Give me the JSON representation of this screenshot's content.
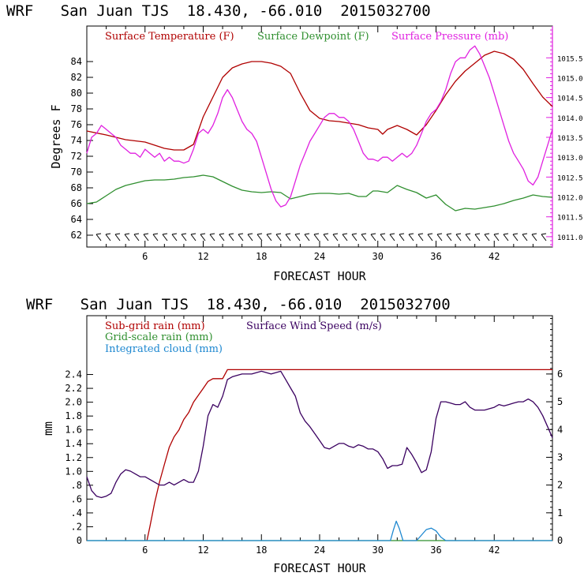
{
  "charts": [
    {
      "title": "WRF   San Juan TJS  18.430, -66.010  2015032700",
      "xlabel": "FORECAST HOUR",
      "ylabel_left": "Degrees F",
      "legend": [
        {
          "label": "Surface Temperature (F)",
          "color": "#b00000"
        },
        {
          "label": "Surface Dewpoint (F)",
          "color": "#2f8f2f"
        },
        {
          "label": "Surface Pressure (mb)",
          "color": "#e020e0"
        }
      ]
    },
    {
      "title": "WRF   San Juan TJS  18.430, -66.010  2015032700",
      "xlabel": "FORECAST HOUR",
      "ylabel_left": "mm",
      "legend": [
        {
          "label": "Sub-grid rain (mm)",
          "color": "#b00000"
        },
        {
          "label": "Surface Wind Speed (m/s)",
          "color": "#3a0060"
        },
        {
          "label": "Grid-scale rain (mm)",
          "color": "#2f8f2f"
        },
        {
          "label": "Integrated cloud (mm)",
          "color": "#1e88d0"
        }
      ]
    }
  ],
  "chart_data": [
    {
      "type": "line",
      "x_range": [
        0,
        48
      ],
      "x_ticks": [
        "6",
        "12",
        "18",
        "24",
        "30",
        "36",
        "42"
      ],
      "y_left_ticks": [
        "62",
        "64",
        "66",
        "68",
        "70",
        "72",
        "74",
        "76",
        "78",
        "80",
        "82",
        "84"
      ],
      "y_left_range": [
        60.5,
        88.5
      ],
      "y_right_ticks": [
        "1011.0",
        "1011.5",
        "1012.0",
        "1012.5",
        "1013.0",
        "1013.5",
        "1014.0",
        "1014.5",
        "1015.0",
        "1015.5"
      ],
      "y_right_range": [
        1010.74,
        1016.3
      ],
      "series": [
        {
          "name": "Surface Temperature (F)",
          "axis": "left",
          "color": "#b00000",
          "x": [
            0,
            2,
            4,
            6,
            8,
            9,
            10,
            11,
            12,
            13,
            14,
            15,
            16,
            17,
            18,
            19,
            20,
            21,
            22,
            23,
            24,
            25,
            26,
            27,
            28,
            29,
            30,
            30.5,
            31,
            32,
            33,
            34,
            35,
            36,
            37,
            38,
            39,
            40,
            41,
            42,
            43,
            44,
            45,
            46,
            47,
            48
          ],
          "y": [
            75.2,
            74.7,
            74.1,
            73.8,
            73.0,
            72.8,
            72.8,
            73.5,
            77,
            79.5,
            82,
            83.2,
            83.7,
            84.0,
            84.0,
            83.8,
            83.4,
            82.5,
            80,
            77.8,
            76.8,
            76.5,
            76.4,
            76.2,
            76.0,
            75.6,
            75.4,
            74.8,
            75.4,
            75.9,
            75.4,
            74.7,
            76,
            77.8,
            79.8,
            81.5,
            82.8,
            83.8,
            84.8,
            85.3,
            85,
            84.3,
            83,
            81.2,
            79.5,
            78.3
          ]
        },
        {
          "name": "Surface Dewpoint (F)",
          "axis": "left",
          "color": "#2f8f2f",
          "x": [
            0,
            1,
            2,
            3,
            4,
            5,
            6,
            7,
            8,
            9,
            10,
            11,
            12,
            13,
            14,
            15,
            16,
            17,
            18,
            19,
            20,
            21,
            22,
            23,
            24,
            25,
            26,
            27,
            28,
            28.8,
            29.5,
            30,
            31,
            32,
            33,
            34,
            35,
            36,
            37,
            38,
            39,
            40,
            41,
            42,
            43,
            44,
            45,
            46,
            47,
            48
          ],
          "y": [
            66,
            66.2,
            67,
            67.8,
            68.3,
            68.6,
            68.9,
            69.0,
            69.0,
            69.1,
            69.3,
            69.4,
            69.6,
            69.4,
            68.8,
            68.2,
            67.7,
            67.5,
            67.4,
            67.5,
            67.4,
            66.6,
            66.9,
            67.2,
            67.3,
            67.3,
            67.2,
            67.3,
            66.9,
            66.9,
            67.6,
            67.6,
            67.4,
            68.3,
            67.8,
            67.4,
            66.7,
            67.1,
            65.9,
            65.1,
            65.4,
            65.3,
            65.5,
            65.7,
            66.0,
            66.4,
            66.7,
            67.1,
            66.9,
            66.8
          ]
        },
        {
          "name": "Surface Pressure (mb)",
          "axis": "right",
          "color": "#e020e0",
          "x": [
            0,
            0.5,
            1,
            1.5,
            2,
            2.5,
            3,
            3.5,
            4,
            4.5,
            5,
            5.5,
            6,
            6.5,
            7,
            7.5,
            8,
            8.5,
            9,
            9.5,
            10,
            10.5,
            11,
            11.5,
            12,
            12.5,
            13,
            13.5,
            14,
            14.5,
            15,
            15.5,
            16,
            16.5,
            17,
            17.5,
            18,
            18.5,
            19,
            19.5,
            20,
            20.5,
            21,
            21.5,
            22,
            22.5,
            23,
            23.5,
            24,
            24.5,
            25,
            25.5,
            26,
            26.5,
            27,
            27.5,
            28,
            28.5,
            29,
            29.5,
            30,
            30.5,
            31,
            31.5,
            32,
            32.5,
            33,
            33.5,
            34,
            34.5,
            35,
            35.5,
            36,
            36.5,
            37,
            37.5,
            38,
            38.5,
            39,
            39.5,
            40,
            40.5,
            41,
            41.5,
            42,
            42.5,
            43,
            43.5,
            44,
            44.5,
            45,
            45.5,
            46,
            46.5,
            47,
            47.5,
            48
          ],
          "y": [
            1013.1,
            1013.5,
            1013.6,
            1013.8,
            1013.7,
            1013.6,
            1013.5,
            1013.3,
            1013.2,
            1013.1,
            1013.1,
            1013.0,
            1013.2,
            1013.1,
            1013.0,
            1013.1,
            1012.9,
            1013.0,
            1012.9,
            1012.9,
            1012.85,
            1012.9,
            1013.2,
            1013.6,
            1013.7,
            1013.6,
            1013.8,
            1014.1,
            1014.5,
            1014.7,
            1014.5,
            1014.2,
            1013.9,
            1013.7,
            1013.6,
            1013.4,
            1013.0,
            1012.6,
            1012.2,
            1011.9,
            1011.75,
            1011.8,
            1012.0,
            1012.4,
            1012.8,
            1013.1,
            1013.4,
            1013.6,
            1013.8,
            1014.0,
            1014.1,
            1014.1,
            1014.0,
            1014.0,
            1013.9,
            1013.7,
            1013.4,
            1013.1,
            1012.95,
            1012.95,
            1012.9,
            1013.0,
            1013.0,
            1012.9,
            1013.0,
            1013.1,
            1013.0,
            1013.1,
            1013.3,
            1013.6,
            1013.9,
            1014.1,
            1014.2,
            1014.4,
            1014.7,
            1015.1,
            1015.4,
            1015.5,
            1015.5,
            1015.7,
            1015.8,
            1015.6,
            1015.3,
            1015.0,
            1014.6,
            1014.2,
            1013.8,
            1013.4,
            1013.1,
            1012.9,
            1012.7,
            1012.4,
            1012.3,
            1012.5,
            1012.9,
            1013.3,
            1013.7
          ]
        }
      ]
    },
    {
      "type": "line",
      "x_range": [
        0,
        48
      ],
      "x_ticks": [
        "6",
        "12",
        "18",
        "24",
        "30",
        "36",
        "42"
      ],
      "y_left_ticks": [
        "0",
        ".2",
        ".4",
        ".6",
        ".8",
        "1.0",
        "1.2",
        "1.4",
        "1.6",
        "1.8",
        "2.0",
        "2.2",
        "2.4"
      ],
      "y_left_range": [
        0,
        3.25
      ],
      "y_right_ticks": [
        "0",
        "1",
        "2",
        "3",
        "4",
        "5",
        "6"
      ],
      "y_right_range": [
        0,
        8.1
      ],
      "series": [
        {
          "name": "Sub-grid rain (mm)",
          "axis": "left",
          "color": "#b00000",
          "x": [
            6.2,
            6.5,
            7,
            7.5,
            8,
            8.5,
            9,
            9.5,
            10,
            10.5,
            11,
            11.5,
            12,
            12.5,
            13,
            13.5,
            14,
            14.5,
            15,
            20,
            25,
            30,
            35,
            40,
            45,
            48
          ],
          "y": [
            0,
            0.2,
            0.55,
            0.85,
            1.1,
            1.35,
            1.5,
            1.6,
            1.75,
            1.85,
            2.0,
            2.1,
            2.2,
            2.3,
            2.34,
            2.34,
            2.34,
            2.47,
            2.47,
            2.47,
            2.47,
            2.47,
            2.47,
            2.47,
            2.47,
            2.47
          ]
        },
        {
          "name": "Surface Wind Speed (m/s)",
          "axis": "right",
          "color": "#3a0060",
          "x": [
            0,
            0.5,
            1,
            1.5,
            2,
            2.5,
            3,
            3.5,
            4,
            4.5,
            5,
            5.5,
            6,
            6.5,
            7,
            7.5,
            8,
            8.5,
            9,
            9.5,
            10,
            10.5,
            11,
            11.5,
            12,
            12.5,
            13,
            13.5,
            14,
            14.5,
            15,
            15.5,
            16,
            16.5,
            17,
            17.5,
            18,
            18.5,
            19,
            19.5,
            20,
            20.5,
            21,
            21.5,
            22,
            22.5,
            23,
            23.5,
            24,
            24.5,
            25,
            25.5,
            26,
            26.5,
            27,
            27.5,
            28,
            28.5,
            29,
            29.5,
            30,
            30.5,
            31,
            31.5,
            32,
            32.5,
            33,
            33.5,
            34,
            34.5,
            35,
            35.5,
            36,
            36.5,
            37,
            37.5,
            38,
            38.5,
            39,
            39.5,
            40,
            40.5,
            41,
            41.5,
            42,
            42.5,
            43,
            43.5,
            44,
            44.5,
            45,
            45.5,
            46,
            46.5,
            47,
            47.5,
            48
          ],
          "y": [
            2.3,
            1.8,
            1.6,
            1.55,
            1.6,
            1.7,
            2.1,
            2.4,
            2.55,
            2.5,
            2.4,
            2.3,
            2.3,
            2.2,
            2.1,
            2.0,
            2.0,
            2.1,
            2.0,
            2.1,
            2.2,
            2.1,
            2.1,
            2.5,
            3.4,
            4.5,
            4.9,
            4.8,
            5.2,
            5.8,
            5.9,
            5.95,
            6.0,
            6.0,
            6.0,
            6.05,
            6.1,
            6.05,
            6.0,
            6.05,
            6.1,
            5.8,
            5.5,
            5.2,
            4.6,
            4.3,
            4.1,
            3.85,
            3.6,
            3.35,
            3.3,
            3.4,
            3.5,
            3.5,
            3.4,
            3.35,
            3.45,
            3.4,
            3.3,
            3.3,
            3.2,
            2.95,
            2.6,
            2.7,
            2.7,
            2.75,
            3.35,
            3.1,
            2.8,
            2.45,
            2.55,
            3.2,
            4.4,
            5.0,
            5.0,
            4.95,
            4.9,
            4.9,
            5.0,
            4.8,
            4.7,
            4.7,
            4.7,
            4.75,
            4.8,
            4.9,
            4.85,
            4.9,
            4.95,
            5.0,
            5.0,
            5.1,
            5.0,
            4.8,
            4.5,
            4.1,
            3.7
          ]
        },
        {
          "name": "Grid-scale rain (mm)",
          "axis": "left",
          "color": "#2f8f2f",
          "x": [
            0,
            48
          ],
          "y": [
            0,
            0
          ]
        },
        {
          "name": "Integrated cloud (mm)",
          "axis": "left",
          "color": "#1e88d0",
          "x": [
            0,
            30,
            31.3,
            31.6,
            31.9,
            32.2,
            32.6,
            33,
            34,
            34.5,
            35,
            35.5,
            36,
            36.5,
            37,
            48
          ],
          "y": [
            0,
            0,
            0,
            0.15,
            0.28,
            0.18,
            0,
            0,
            0,
            0.08,
            0.16,
            0.18,
            0.14,
            0.05,
            0,
            0
          ]
        }
      ]
    }
  ]
}
